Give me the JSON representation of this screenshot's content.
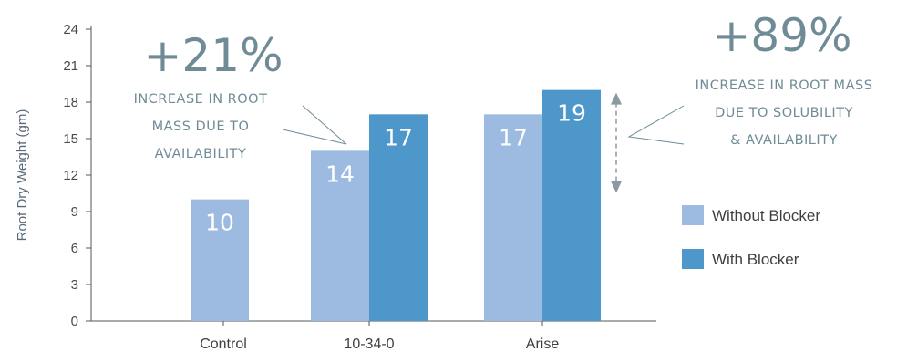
{
  "chart_data": {
    "type": "bar",
    "categories": [
      "Control",
      "10-34-0",
      "Arise"
    ],
    "series": [
      {
        "name": "Without Blocker",
        "color": "#9dbbe0",
        "values": [
          10,
          14,
          17
        ]
      },
      {
        "name": "With Blocker",
        "color": "#4e97cb",
        "values": [
          null,
          17,
          19
        ]
      }
    ],
    "bar_labels": [
      [
        "10",
        "14",
        "17"
      ],
      [
        null,
        "17",
        "19"
      ]
    ],
    "ylabel": "Root Dry Weight (gm)",
    "xlabel": "",
    "ylim": [
      0,
      24
    ],
    "yticks": [
      0,
      3,
      6,
      9,
      12,
      15,
      18,
      21,
      24
    ],
    "grid": false,
    "legend_position": "right",
    "annotations": [
      {
        "id": "a1",
        "headline": "+21%",
        "lines": [
          "INCREASE IN ROOT",
          "MASS DUE TO",
          "AVAILABILITY"
        ]
      },
      {
        "id": "a2",
        "headline": "+89%",
        "lines": [
          "INCREASE IN ROOT MASS",
          "DUE TO SOLUBILITY",
          "& AVAILABILITY"
        ]
      }
    ]
  },
  "colors": {
    "axis": "#555555",
    "annotation": "#6f8b96",
    "arrow": "#8a9aa0"
  }
}
